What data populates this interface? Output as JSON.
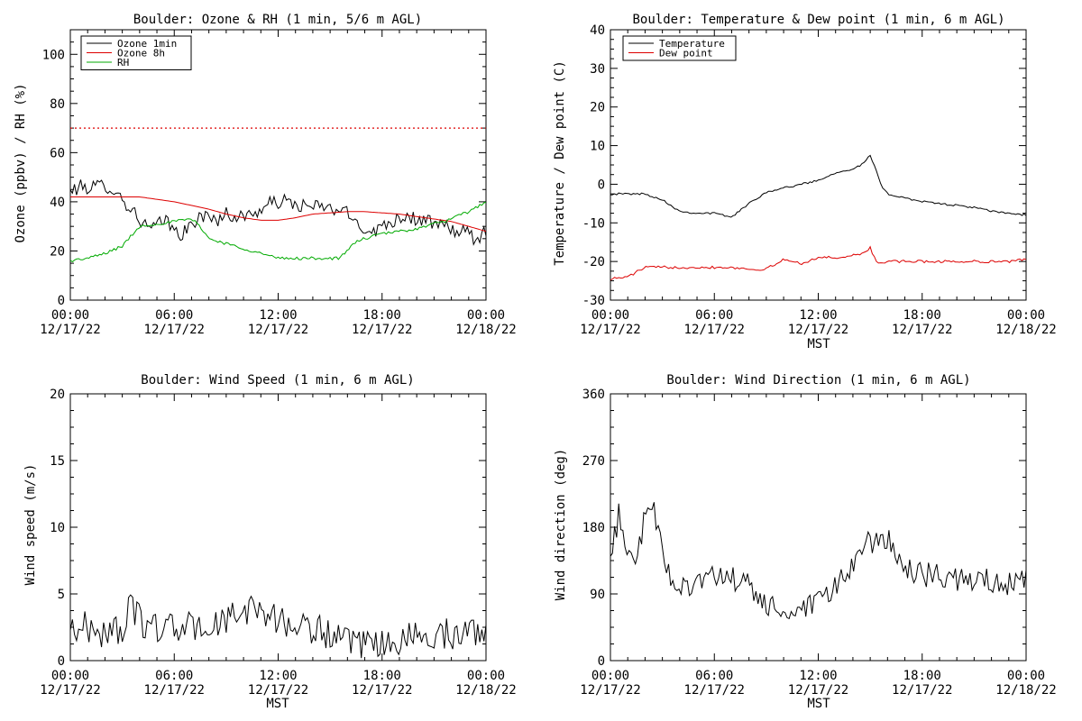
{
  "chart_data": [
    {
      "type": "line",
      "title": "Boulder: Ozone & RH (1 min, 5/6 m AGL)",
      "xlabel": "",
      "ylabel": "Ozone (ppbv) / RH (%)",
      "ylim": [
        0,
        110
      ],
      "yticks": [
        0,
        20,
        40,
        60,
        80,
        100
      ],
      "xlim_hours": [
        0,
        24
      ],
      "xticks": [
        {
          "hour": 0,
          "time": "00:00",
          "date": "12/17/22"
        },
        {
          "hour": 6,
          "time": "06:00",
          "date": "12/17/22"
        },
        {
          "hour": 12,
          "time": "12:00",
          "date": "12/17/22"
        },
        {
          "hour": 18,
          "time": "18:00",
          "date": "12/17/22"
        },
        {
          "hour": 24,
          "time": "00:00",
          "date": "12/18/22"
        }
      ],
      "legend_position": "top-left",
      "reference_line": {
        "y": 70,
        "color": "#dd0000",
        "style": "dotted"
      },
      "series": [
        {
          "name": "Ozone 1min",
          "color": "#000000",
          "noise": 3.0,
          "x": [
            0,
            0.5,
            1,
            1.5,
            2,
            2.5,
            3,
            3.5,
            4,
            4.5,
            5,
            5.5,
            6,
            6.5,
            7,
            7.5,
            8,
            8.5,
            9,
            9.5,
            10,
            10.5,
            11,
            11.5,
            12,
            12.5,
            13,
            13.5,
            14,
            14.5,
            15,
            15.5,
            16,
            16.5,
            17,
            17.5,
            18,
            18.5,
            19,
            19.5,
            20,
            20.5,
            21,
            21.5,
            22,
            22.5,
            23,
            23.5,
            24
          ],
          "y": [
            44,
            46,
            46,
            46,
            47,
            45,
            41,
            37,
            33,
            29,
            30,
            33,
            28,
            27,
            30,
            35,
            33,
            33,
            35,
            34,
            34,
            35,
            37,
            39,
            40,
            40,
            39,
            38,
            38,
            38,
            37,
            37,
            35,
            32,
            29,
            28,
            30,
            32,
            34,
            34,
            33,
            32,
            31,
            30,
            29,
            28,
            27,
            24,
            29
          ]
        },
        {
          "name": "Ozone 8h",
          "color": "#dd0000",
          "noise": 0,
          "x": [
            0,
            1,
            2,
            3,
            4,
            5,
            6,
            7,
            8,
            9,
            10,
            11,
            12,
            13,
            14,
            15,
            16,
            17,
            18,
            19,
            20,
            21,
            22,
            23,
            24
          ],
          "y": [
            42,
            42,
            42,
            42,
            42,
            41,
            40,
            38.5,
            37,
            35,
            33.5,
            32.5,
            32.5,
            33.5,
            35,
            35.5,
            36,
            36,
            35.5,
            35,
            34,
            33,
            32,
            30,
            28
          ]
        },
        {
          "name": "RH",
          "color": "#00aa00",
          "noise": 0.6,
          "x": [
            0,
            1,
            2,
            3,
            3.5,
            4,
            5,
            6,
            7,
            7.5,
            8,
            9,
            10,
            11,
            12,
            13,
            14,
            15,
            15.5,
            16,
            16.5,
            17,
            18,
            19,
            20,
            21,
            22,
            23,
            24
          ],
          "y": [
            16,
            17,
            19,
            22,
            26,
            30,
            31,
            32,
            33,
            30,
            25,
            23,
            21,
            19,
            17,
            17,
            17,
            17,
            17,
            20,
            24,
            25,
            27,
            28,
            29,
            31,
            33,
            36,
            40
          ]
        }
      ]
    },
    {
      "type": "line",
      "title": "Boulder: Temperature & Dew point (1 min, 6 m AGL)",
      "xlabel": "MST",
      "ylabel": "Temperature / Dew point (C)",
      "ylim": [
        -30,
        40
      ],
      "yticks": [
        -30,
        -20,
        -10,
        0,
        10,
        20,
        30,
        40
      ],
      "xlim_hours": [
        0,
        24
      ],
      "xticks": [
        {
          "hour": 0,
          "time": "00:00",
          "date": "12/17/22"
        },
        {
          "hour": 6,
          "time": "06:00",
          "date": "12/17/22"
        },
        {
          "hour": 12,
          "time": "12:00",
          "date": "12/17/22"
        },
        {
          "hour": 18,
          "time": "18:00",
          "date": "12/17/22"
        },
        {
          "hour": 24,
          "time": "00:00",
          "date": "12/18/22"
        }
      ],
      "legend_position": "top-left",
      "series": [
        {
          "name": "Temperature",
          "color": "#000000",
          "noise": 0.25,
          "x": [
            0,
            1,
            2,
            3,
            4,
            5,
            6,
            7,
            8,
            9,
            10,
            11,
            12,
            13,
            14,
            14.5,
            15,
            15.3,
            15.7,
            16,
            17,
            18,
            19,
            20,
            21,
            22,
            23,
            24
          ],
          "y": [
            -2.5,
            -2.5,
            -2.5,
            -4,
            -7,
            -7.5,
            -7.5,
            -8.5,
            -5,
            -2,
            -1,
            0,
            1,
            3,
            4,
            5,
            7.5,
            4,
            -1,
            -2.5,
            -3.5,
            -4.5,
            -5,
            -5.5,
            -6,
            -7,
            -7.5,
            -8
          ]
        },
        {
          "name": "Dew point",
          "color": "#dd0000",
          "noise": 0.35,
          "x": [
            0,
            1,
            2,
            3,
            4,
            5,
            6,
            7,
            8,
            9,
            10,
            11,
            12,
            13,
            14,
            14.5,
            15,
            15.4,
            16,
            17,
            18,
            19,
            20,
            21,
            22,
            23,
            24
          ],
          "y": [
            -24.5,
            -24,
            -21.5,
            -21.5,
            -21.5,
            -21.5,
            -21.5,
            -21.5,
            -22,
            -22,
            -19.5,
            -20.5,
            -19,
            -19,
            -18.5,
            -18,
            -16.5,
            -20.5,
            -20,
            -20,
            -20,
            -20,
            -20,
            -20,
            -20,
            -20,
            -19.5
          ]
        }
      ]
    },
    {
      "type": "line",
      "title": "Boulder: Wind Speed (1 min, 6 m AGL)",
      "xlabel": "MST",
      "ylabel": "Wind speed (m/s)",
      "ylim": [
        0,
        20
      ],
      "yticks": [
        0,
        5,
        10,
        15,
        20
      ],
      "xlim_hours": [
        0,
        24
      ],
      "xticks": [
        {
          "hour": 0,
          "time": "00:00",
          "date": "12/17/22"
        },
        {
          "hour": 6,
          "time": "06:00",
          "date": "12/17/22"
        },
        {
          "hour": 12,
          "time": "12:00",
          "date": "12/17/22"
        },
        {
          "hour": 18,
          "time": "18:00",
          "date": "12/17/22"
        },
        {
          "hour": 24,
          "time": "00:00",
          "date": "12/18/22"
        }
      ],
      "series": [
        {
          "name": "",
          "color": "#000000",
          "noise": 1.2,
          "x": [
            0,
            1,
            2,
            3,
            3.5,
            4,
            5,
            6,
            7,
            8,
            9,
            10,
            10.5,
            11,
            12,
            13,
            14,
            15,
            16,
            17,
            18,
            19,
            20,
            21,
            22,
            23,
            24
          ],
          "y": [
            2.5,
            2.5,
            2,
            2.5,
            4,
            3,
            2.5,
            2.5,
            2.5,
            2.5,
            3,
            3.5,
            4,
            4,
            3,
            2.5,
            2.5,
            2,
            1.2,
            1,
            1.2,
            1.5,
            1.8,
            2,
            2,
            2.2,
            2.3
          ]
        }
      ]
    },
    {
      "type": "line",
      "title": "Boulder: Wind Direction (1 min, 6 m AGL)",
      "xlabel": "MST",
      "ylabel": "Wind direction (deg)",
      "ylim": [
        0,
        360
      ],
      "yticks": [
        0,
        90,
        180,
        270,
        360
      ],
      "xlim_hours": [
        0,
        24
      ],
      "xticks": [
        {
          "hour": 0,
          "time": "00:00",
          "date": "12/17/22"
        },
        {
          "hour": 6,
          "time": "06:00",
          "date": "12/17/22"
        },
        {
          "hour": 12,
          "time": "12:00",
          "date": "12/17/22"
        },
        {
          "hour": 18,
          "time": "18:00",
          "date": "12/17/22"
        },
        {
          "hour": 24,
          "time": "00:00",
          "date": "12/18/22"
        }
      ],
      "series": [
        {
          "name": "",
          "color": "#000000",
          "noise": 18,
          "x": [
            0,
            0.5,
            1,
            1.5,
            2,
            2.5,
            3,
            3.5,
            4,
            5,
            6,
            7,
            8,
            9,
            10,
            11,
            12,
            13,
            14,
            15,
            16,
            16.5,
            17,
            18,
            19,
            20,
            21,
            22,
            23,
            24
          ],
          "y": [
            130,
            200,
            150,
            140,
            190,
            210,
            140,
            110,
            100,
            110,
            110,
            110,
            100,
            75,
            65,
            65,
            75,
            100,
            130,
            160,
            170,
            140,
            120,
            115,
            115,
            110,
            110,
            105,
            105,
            105
          ]
        }
      ]
    }
  ]
}
